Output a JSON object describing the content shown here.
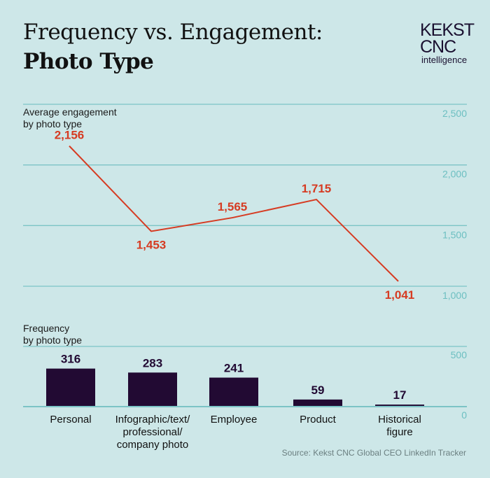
{
  "header": {
    "title_line1": "Frequency vs. Engagement:",
    "title_line2": "Photo Type",
    "logo": {
      "line1": "KEKST",
      "line2": "CNC",
      "line3": "intelligence"
    }
  },
  "source": "Source: Kekst CNC Global CEO LinkedIn Tracker",
  "colors": {
    "background": "#cde7e8",
    "line": "#d63b22",
    "bars": "#220a33",
    "grid": "#7cc4c6",
    "axis_labels": "#6cbfc1"
  },
  "chart_data": [
    {
      "type": "line",
      "title": "Average engagement by photo type",
      "subtitle_line1": "Average engagement",
      "subtitle_line2": "by photo type",
      "categories": [
        "Personal",
        "Infographic/text/professional/company photo",
        "Employee",
        "Product",
        "Historical figure"
      ],
      "values": [
        2156,
        1453,
        1565,
        1715,
        1041
      ],
      "data_labels": [
        "2,156",
        "1,453",
        "1,565",
        "1,715",
        "1,041"
      ],
      "ylim": [
        1000,
        2500
      ],
      "yticks": [
        2500,
        2000,
        1500,
        1000
      ],
      "ytick_labels": [
        "2,500",
        "2,000",
        "1,500",
        "1,000"
      ],
      "grid": true,
      "yaxis_side": "right"
    },
    {
      "type": "bar",
      "title": "Frequency by photo type",
      "subtitle_line1": "Frequency",
      "subtitle_line2": "by photo type",
      "categories": [
        "Personal",
        "Infographic/text/professional/company photo",
        "Employee",
        "Product",
        "Historical figure"
      ],
      "category_label_lines": [
        [
          "Personal"
        ],
        [
          "Infographic/text/",
          "professional/",
          "company photo"
        ],
        [
          "Employee"
        ],
        [
          "Product"
        ],
        [
          "Historical",
          "figure"
        ]
      ],
      "values": [
        316,
        283,
        241,
        59,
        17
      ],
      "data_labels": [
        "316",
        "283",
        "241",
        "59",
        "17"
      ],
      "ylim": [
        0,
        500
      ],
      "yticks": [
        500,
        0
      ],
      "ytick_labels": [
        "500",
        "0"
      ],
      "grid": true,
      "yaxis_side": "right"
    }
  ]
}
